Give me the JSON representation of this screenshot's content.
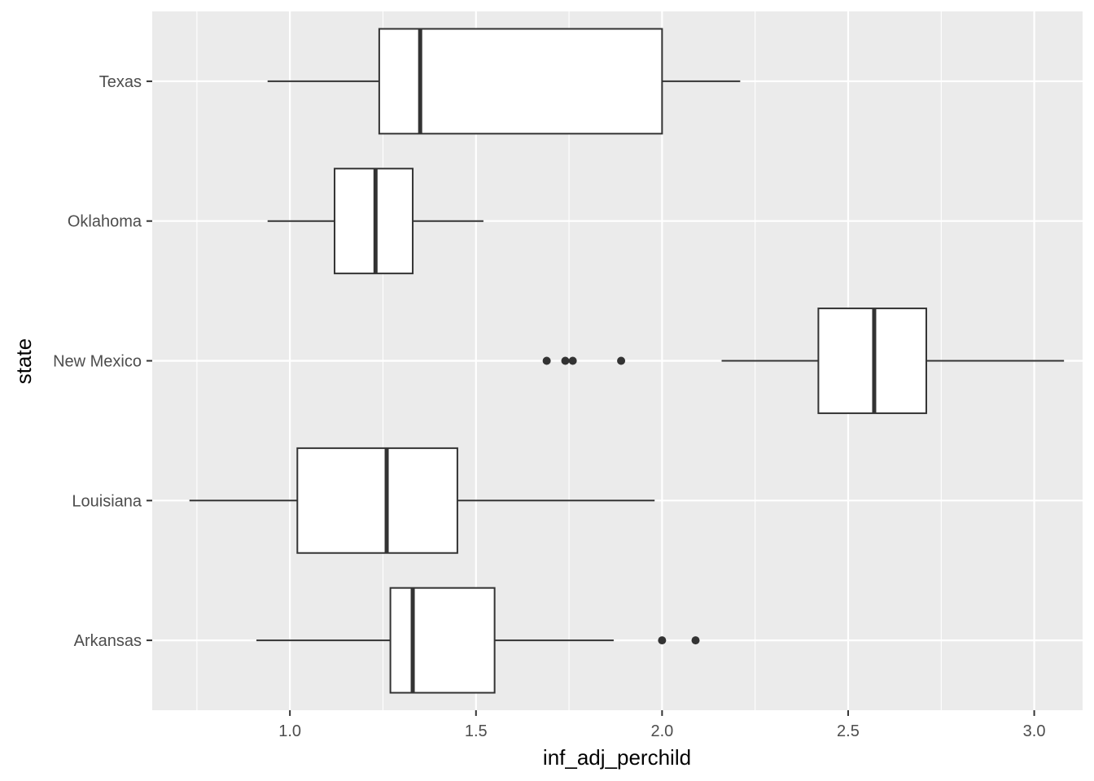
{
  "chart_data": {
    "type": "boxplot",
    "orientation": "horizontal",
    "xlabel": "inf_adj_perchild",
    "ylabel": "state",
    "xlim": [
      0.63,
      3.13
    ],
    "x_ticks": [
      1.0,
      1.5,
      2.0,
      2.5,
      3.0
    ],
    "x_tick_labels": [
      "1.0",
      "1.5",
      "2.0",
      "2.5",
      "3.0"
    ],
    "categories": [
      "Arkansas",
      "Louisiana",
      "New Mexico",
      "Oklahoma",
      "Texas"
    ],
    "boxes": [
      {
        "category": "Arkansas",
        "whisker_low": 0.91,
        "q1": 1.27,
        "median": 1.33,
        "q3": 1.55,
        "whisker_high": 1.87,
        "outliers": [
          2.0,
          2.09
        ]
      },
      {
        "category": "Louisiana",
        "whisker_low": 0.73,
        "q1": 1.02,
        "median": 1.26,
        "q3": 1.45,
        "whisker_high": 1.98,
        "outliers": []
      },
      {
        "category": "New Mexico",
        "whisker_low": 2.16,
        "q1": 2.42,
        "median": 2.57,
        "q3": 2.71,
        "whisker_high": 3.08,
        "outliers": [
          1.69,
          1.74,
          1.76,
          1.89
        ]
      },
      {
        "category": "Oklahoma",
        "whisker_low": 0.94,
        "q1": 1.12,
        "median": 1.23,
        "q3": 1.33,
        "whisker_high": 1.52,
        "outliers": []
      },
      {
        "category": "Texas",
        "whisker_low": 0.94,
        "q1": 1.24,
        "median": 1.35,
        "q3": 2.0,
        "whisker_high": 2.21,
        "outliers": []
      }
    ],
    "grid": true,
    "legend": "none",
    "colors": {
      "panel_background": "#ebebeb",
      "grid_major": "#ffffff",
      "box_fill": "#ffffff",
      "box_stroke": "#333333",
      "tick_label": "#4d4d4d",
      "axis_title": "#000000"
    }
  }
}
